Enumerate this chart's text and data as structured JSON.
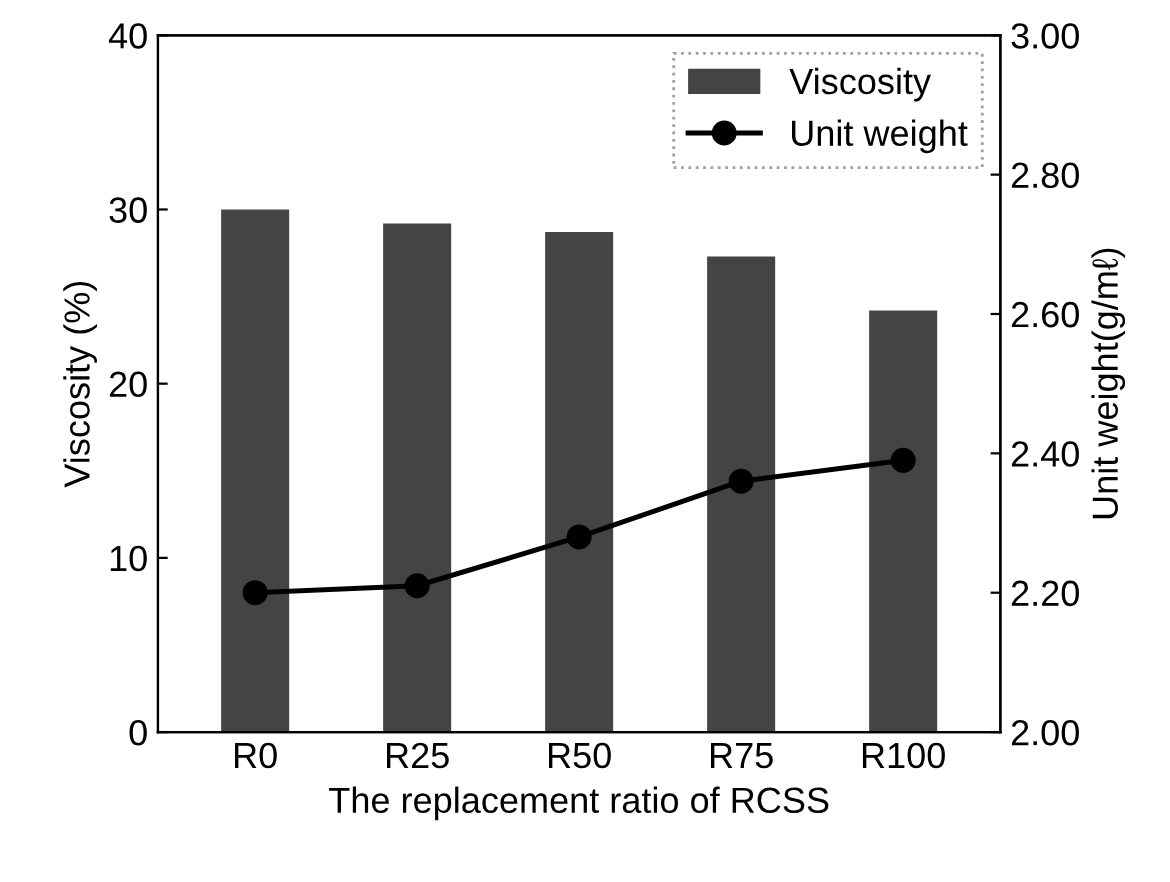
{
  "chart_data": {
    "type": "bar",
    "xlabel": "The replacement ratio of RCSS",
    "ylabel": "Viscosity (%)",
    "y2label": "Unit weight(g/mℓ)",
    "categories": [
      "R0",
      "R25",
      "R50",
      "R75",
      "R100"
    ],
    "series": [
      {
        "name": "Viscosity",
        "color": "#444444",
        "values": [
          30,
          29.2,
          28.7,
          27.3,
          24.2
        ]
      },
      {
        "name": "Unit weight",
        "type": "line",
        "axis": "y2",
        "color": "#000000",
        "marker": "circle",
        "values": [
          2.2,
          2.21,
          2.28,
          2.36,
          2.39
        ]
      }
    ],
    "ylim": [
      0,
      40
    ],
    "yticks": [
      0,
      10,
      20,
      30,
      40
    ],
    "y2lim": [
      2.0,
      3.0
    ],
    "y2ticks": [
      {
        "value": 2.0,
        "label": "2.00"
      },
      {
        "value": 2.2,
        "label": "2.20"
      },
      {
        "value": 2.4,
        "label": "2.40"
      },
      {
        "value": 2.6,
        "label": "2.60"
      },
      {
        "value": 2.8,
        "label": "2.80"
      },
      {
        "value": 3.0,
        "label": "3.00"
      }
    ],
    "grid": false,
    "legend": "top right"
  }
}
